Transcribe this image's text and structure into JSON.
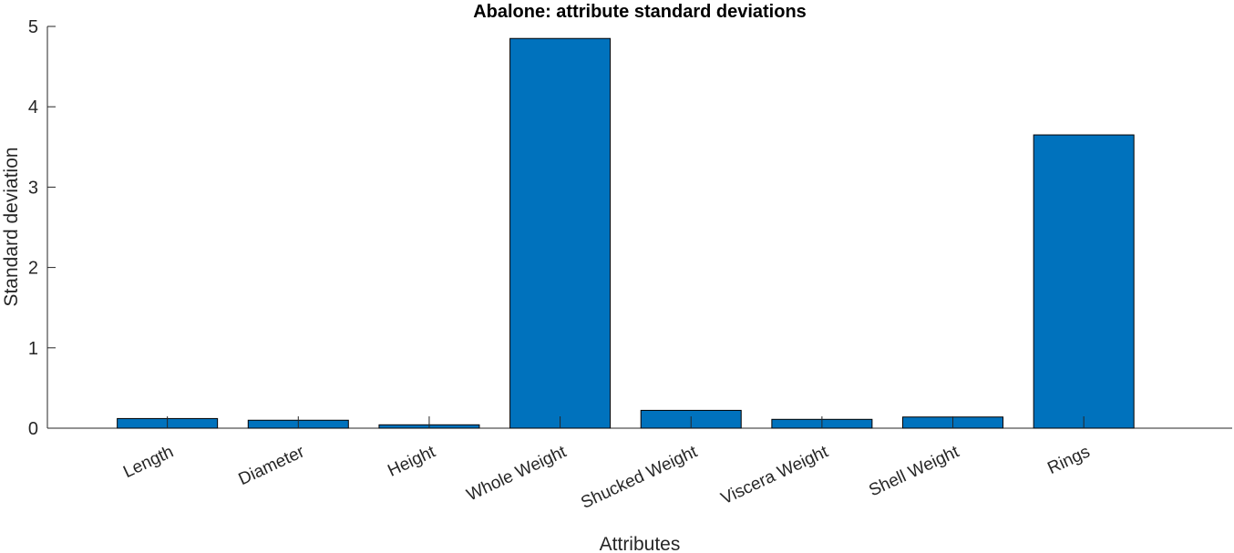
{
  "chart_data": {
    "type": "bar",
    "title": "Abalone: attribute standard deviations",
    "xlabel": "Attributes",
    "ylabel": "Standard deviation",
    "categories": [
      "Length",
      "Diameter",
      "Height",
      "Whole Weight",
      "Shucked Weight",
      "Viscera Weight",
      "Shell Weight",
      "Rings"
    ],
    "values": [
      0.12,
      0.099,
      0.042,
      4.85,
      0.222,
      0.11,
      0.139,
      3.65
    ],
    "ylim": [
      0,
      5
    ],
    "yticks": [
      "0",
      "1",
      "2",
      "3",
      "4",
      "5"
    ],
    "bar_color": "#0072BD",
    "edge_color": "#000000",
    "grid": false,
    "legend": "none"
  }
}
